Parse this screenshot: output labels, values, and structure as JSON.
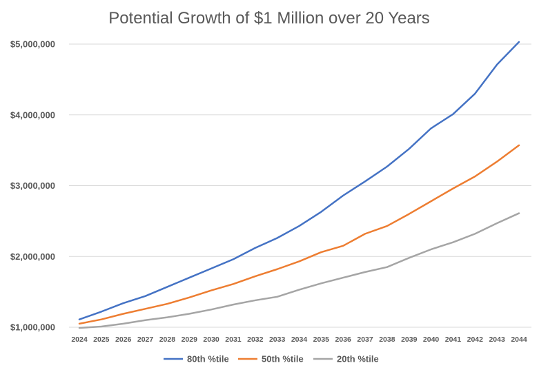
{
  "chart_data": {
    "type": "line",
    "title": "Potential Growth of $1 Million over 20 Years",
    "xlabel": "",
    "ylabel": "",
    "categories": [
      "2024",
      "2025",
      "2026",
      "2027",
      "2028",
      "2029",
      "2030",
      "2031",
      "2032",
      "2033",
      "2034",
      "2035",
      "2036",
      "2037",
      "2038",
      "2039",
      "2040",
      "2041",
      "2042",
      "2043",
      "2044"
    ],
    "ylim": [
      1000000,
      5000000
    ],
    "yticks": [
      1000000,
      2000000,
      3000000,
      4000000,
      5000000
    ],
    "ytick_labels": [
      "$1,000,000",
      "$2,000,000",
      "$3,000,000",
      "$4,000,000",
      "$5,000,000"
    ],
    "grid": true,
    "legend_position": "bottom",
    "series": [
      {
        "name": "80th %tile",
        "color": "#4472c4",
        "values": [
          1110000,
          1220000,
          1340000,
          1440000,
          1570000,
          1700000,
          1830000,
          1960000,
          2120000,
          2260000,
          2430000,
          2630000,
          2860000,
          3060000,
          3270000,
          3520000,
          3810000,
          4010000,
          4300000,
          4710000,
          5030000
        ]
      },
      {
        "name": "50th %tile",
        "color": "#ed7d31",
        "values": [
          1050000,
          1110000,
          1190000,
          1260000,
          1330000,
          1420000,
          1520000,
          1610000,
          1720000,
          1820000,
          1930000,
          2060000,
          2150000,
          2320000,
          2430000,
          2600000,
          2780000,
          2960000,
          3130000,
          3340000,
          3570000
        ]
      },
      {
        "name": "20th %tile",
        "color": "#a5a5a5",
        "values": [
          990000,
          1010000,
          1050000,
          1100000,
          1140000,
          1190000,
          1250000,
          1320000,
          1380000,
          1430000,
          1530000,
          1620000,
          1700000,
          1780000,
          1850000,
          1980000,
          2100000,
          2200000,
          2320000,
          2470000,
          2610000
        ]
      }
    ]
  }
}
